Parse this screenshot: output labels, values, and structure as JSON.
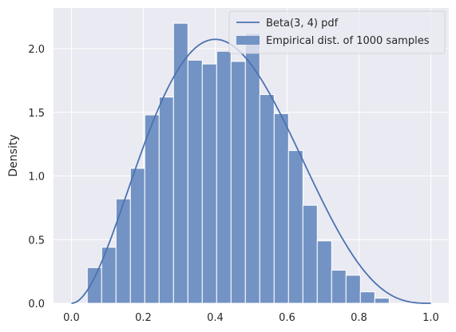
{
  "chart_data": {
    "type": "histogram",
    "ylabel": "Density",
    "xlim": [
      -0.05,
      1.05
    ],
    "ylim": [
      0,
      2.32
    ],
    "grid": true,
    "legend_placement": "top-right",
    "xticks": [
      "0.0",
      "0.2",
      "0.4",
      "0.6",
      "0.8",
      "1.0"
    ],
    "yticks": [
      "0.0",
      "0.5",
      "1.0",
      "1.5",
      "2.0"
    ],
    "series": [
      {
        "name": "Beta(3, 4) pdf",
        "kind": "line",
        "color": "#4c72b0",
        "distribution": {
          "alpha": 3,
          "beta": 4
        }
      },
      {
        "name": "Empirical dist. of 1000 samples",
        "kind": "histogram",
        "color": "#7393c4",
        "bins": [
          {
            "start": 0.044,
            "end": 0.084,
            "density": 0.28
          },
          {
            "start": 0.084,
            "end": 0.124,
            "density": 0.44
          },
          {
            "start": 0.124,
            "end": 0.164,
            "density": 0.82
          },
          {
            "start": 0.164,
            "end": 0.204,
            "density": 1.06
          },
          {
            "start": 0.204,
            "end": 0.244,
            "density": 1.48
          },
          {
            "start": 0.244,
            "end": 0.284,
            "density": 1.62
          },
          {
            "start": 0.284,
            "end": 0.324,
            "density": 2.2
          },
          {
            "start": 0.324,
            "end": 0.364,
            "density": 1.91
          },
          {
            "start": 0.364,
            "end": 0.404,
            "density": 1.88
          },
          {
            "start": 0.404,
            "end": 0.444,
            "density": 1.98
          },
          {
            "start": 0.444,
            "end": 0.484,
            "density": 1.9
          },
          {
            "start": 0.484,
            "end": 0.524,
            "density": 2.12
          },
          {
            "start": 0.524,
            "end": 0.564,
            "density": 1.64
          },
          {
            "start": 0.564,
            "end": 0.604,
            "density": 1.49
          },
          {
            "start": 0.604,
            "end": 0.644,
            "density": 1.2
          },
          {
            "start": 0.644,
            "end": 0.684,
            "density": 0.77
          },
          {
            "start": 0.684,
            "end": 0.724,
            "density": 0.49
          },
          {
            "start": 0.724,
            "end": 0.764,
            "density": 0.26
          },
          {
            "start": 0.764,
            "end": 0.804,
            "density": 0.22
          },
          {
            "start": 0.804,
            "end": 0.844,
            "density": 0.09
          },
          {
            "start": 0.844,
            "end": 0.884,
            "density": 0.04
          }
        ]
      }
    ]
  }
}
